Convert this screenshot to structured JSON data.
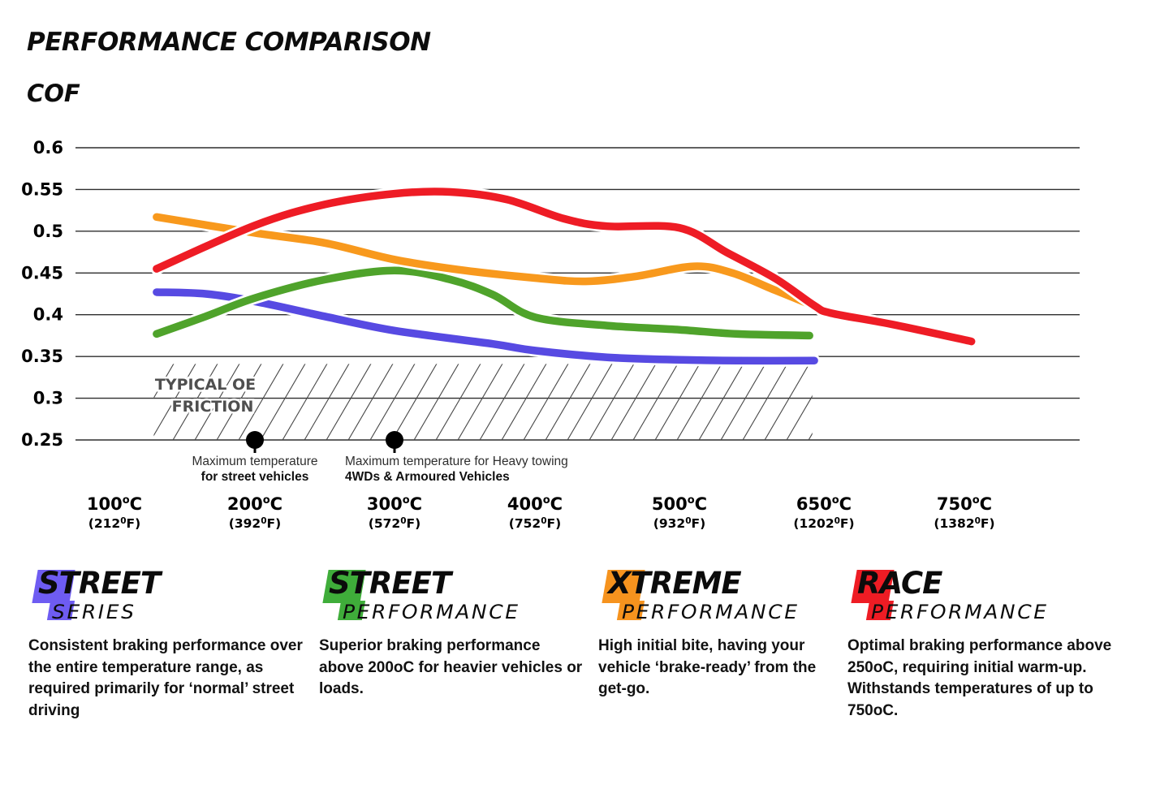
{
  "chart_data": {
    "type": "line",
    "title": "PERFORMANCE COMPARISON",
    "ylabel": "COF",
    "xlabel": "",
    "ylim": [
      0.25,
      0.6
    ],
    "grid": true,
    "legend_position": "none",
    "y_ticks": [
      "0.6",
      "0.55",
      "0.5",
      "0.45",
      "0.4",
      "0.35",
      "0.3",
      "0.25"
    ],
    "x_ticks": [
      {
        "celsius": "100",
        "fahrenheit": "212"
      },
      {
        "celsius": "200",
        "fahrenheit": "392"
      },
      {
        "celsius": "300",
        "fahrenheit": "572"
      },
      {
        "celsius": "400",
        "fahrenheit": "752"
      },
      {
        "celsius": "500",
        "fahrenheit": "932"
      },
      {
        "celsius": "650",
        "fahrenheit": "1202"
      },
      {
        "celsius": "750",
        "fahrenheit": "1382"
      }
    ],
    "series": [
      {
        "name": "Street Series",
        "color": "#574ae2",
        "points": [
          [
            130,
            0.427
          ],
          [
            165,
            0.425
          ],
          [
            200,
            0.416
          ],
          [
            250,
            0.398
          ],
          [
            300,
            0.381
          ],
          [
            370,
            0.365
          ],
          [
            400,
            0.357
          ],
          [
            450,
            0.349
          ],
          [
            500,
            0.346
          ],
          [
            560,
            0.345
          ],
          [
            640,
            0.345
          ]
        ]
      },
      {
        "name": "Street Performance",
        "color": "#4fa32b",
        "points": [
          [
            130,
            0.377
          ],
          [
            165,
            0.398
          ],
          [
            200,
            0.42
          ],
          [
            250,
            0.442
          ],
          [
            300,
            0.453
          ],
          [
            340,
            0.442
          ],
          [
            370,
            0.424
          ],
          [
            400,
            0.397
          ],
          [
            450,
            0.387
          ],
          [
            500,
            0.382
          ],
          [
            560,
            0.377
          ],
          [
            635,
            0.375
          ]
        ]
      },
      {
        "name": "Xtreme Performance",
        "color": "#f8991d",
        "points": [
          [
            130,
            0.517
          ],
          [
            200,
            0.498
          ],
          [
            250,
            0.486
          ],
          [
            300,
            0.466
          ],
          [
            350,
            0.453
          ],
          [
            400,
            0.444
          ],
          [
            435,
            0.44
          ],
          [
            470,
            0.446
          ],
          [
            515,
            0.458
          ],
          [
            555,
            0.45
          ],
          [
            600,
            0.429
          ],
          [
            645,
            0.408
          ]
        ]
      },
      {
        "name": "Race Performance",
        "color": "#ee1c25",
        "points": [
          [
            130,
            0.455
          ],
          [
            200,
            0.507
          ],
          [
            250,
            0.532
          ],
          [
            300,
            0.545
          ],
          [
            340,
            0.547
          ],
          [
            380,
            0.538
          ],
          [
            420,
            0.515
          ],
          [
            450,
            0.506
          ],
          [
            500,
            0.504
          ],
          [
            550,
            0.474
          ],
          [
            600,
            0.443
          ],
          [
            640,
            0.411
          ],
          [
            655,
            0.402
          ],
          [
            700,
            0.388
          ],
          [
            755,
            0.368
          ]
        ]
      }
    ],
    "annotations": {
      "oe_zone": {
        "label_line1": "TYPICAL OE",
        "label_line2": "FRICTION",
        "temp_range": [
          128,
          638
        ],
        "cof_range": [
          0.25,
          0.341
        ]
      },
      "markers": [
        {
          "temp": 200,
          "cof": 0.25,
          "align": "center",
          "line1": "Maximum temperature",
          "line2": "for street vehicles"
        },
        {
          "temp": 300,
          "cof": 0.25,
          "align": "left",
          "line1": "Maximum temperature for Heavy towing",
          "line2": "4WDs & Armoured Vehicles"
        }
      ]
    }
  },
  "products": [
    {
      "brand_top": "STREET",
      "brand_bottom": "SERIES",
      "color": "#6e5cf2",
      "description": "Consistent braking performance over the entire temperature range, as required primarily for ‘normal’ street driving"
    },
    {
      "brand_top": "STREET",
      "brand_bottom": "PERFORMANCE",
      "color": "#3fad3a",
      "description": "Superior braking performance above 200oC for heavier vehicles or loads."
    },
    {
      "brand_top": "XTREME",
      "brand_bottom": "PERFORMANCE",
      "color": "#f6931e",
      "description": "High initial bite, having your vehicle ‘brake-ready’ from the get-go."
    },
    {
      "brand_top": "RACE",
      "brand_bottom": "PERFORMANCE",
      "color": "#ee1c24",
      "description": "Optimal braking performance above 250oC, requiring initial warm-up. Withstands temperatures of up to 750oC."
    }
  ]
}
